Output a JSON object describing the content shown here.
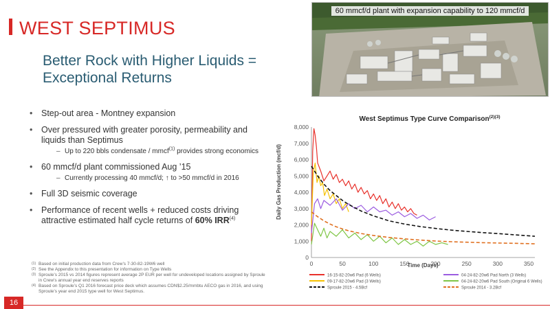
{
  "slide": {
    "title": "WEST SEPTIMUS",
    "subtitle": "Better Rock with Higher Liquids = Exceptional Returns",
    "page_number": "16",
    "accent_color": "#d72826"
  },
  "bullets": [
    {
      "text": "Step-out area - Montney expansion"
    },
    {
      "text": "Over pressured with greater porosity, permeability and liquids than Septimus",
      "sub": {
        "before": "Up to 220 bbls condensate / mmcf",
        "sup": "(1)",
        "after": " provides strong economics"
      }
    },
    {
      "text": "60 mmcf/d plant commissioned Aug ’15",
      "sub": {
        "before": "Currently processing 40 mmcf/d; ↑ to >50 mmcf/d in 2016",
        "sup": "",
        "after": ""
      }
    },
    {
      "text": "Full 3D seismic coverage"
    },
    {
      "text": "Performance of recent wells + reduced costs driving attractive estimated half cycle returns of ",
      "emphasis": "60% IRR",
      "sup": "(4)"
    }
  ],
  "footnotes": [
    {
      "mark": "(1)",
      "text": "Based on initial production data from Crew’s 7-30-82-19W6 well"
    },
    {
      "mark": "(2)",
      "text": "See the Appendix to this presentation for information on Type Wells"
    },
    {
      "mark": "(3)",
      "text": "Sproule’s 2015 vs 2014 figures represent average 2P EUR per well for undeveloped locations assigned by Sproule in Crew’s annual year end reserves reports"
    },
    {
      "mark": "(4)",
      "text": "Based on Sproule’s Q1 2016 forecast price deck which assumes CDN$2.25/mmbtu AECO gas in 2016, and using Sproule’s year end 2015 type well for West Septimus."
    }
  ],
  "photo": {
    "caption": "60 mmcf/d plant with expansion capability to 120 mmcf/d"
  },
  "chart_data": {
    "type": "line",
    "title": "West Septimus Type Curve Comparison",
    "title_sup": "(2)(3)",
    "xlabel": "Time (Days)",
    "ylabel": "Daily Gas Production (mcf/d)",
    "xlim": [
      0,
      360
    ],
    "ylim": [
      0,
      8000
    ],
    "xticks": [
      0,
      50,
      100,
      150,
      200,
      250,
      300,
      350
    ],
    "yticks": [
      0,
      1000,
      2000,
      3000,
      4000,
      5000,
      6000,
      7000,
      8000
    ],
    "ytick_labels": [
      "0",
      "1,000",
      "2,000",
      "3,000",
      "4,000",
      "5,000",
      "6,000",
      "7,000",
      "8,000"
    ],
    "grid": false,
    "legend_position": "bottom",
    "series": [
      {
        "name": "16-15-82-20w6 Pad (6 Wells)",
        "color": "#e8302a",
        "style": "solid",
        "x": [
          0,
          2,
          4,
          6,
          8,
          10,
          15,
          20,
          25,
          30,
          35,
          40,
          45,
          50,
          55,
          60,
          65,
          70,
          75,
          80,
          85,
          90,
          95,
          100,
          105,
          110,
          115,
          120,
          125,
          130,
          135,
          140,
          145,
          150,
          155,
          160,
          165,
          170
        ],
        "y": [
          1000,
          6500,
          7900,
          7500,
          6800,
          5800,
          5300,
          4700,
          5000,
          5300,
          4800,
          5100,
          4600,
          4800,
          4400,
          4700,
          4200,
          4500,
          4000,
          4300,
          3900,
          4100,
          3600,
          3900,
          3500,
          3800,
          3300,
          3600,
          3100,
          3400,
          3000,
          3300,
          2900,
          3100,
          2800,
          3000,
          2700,
          2600
        ]
      },
      {
        "name": "09-17-82-20w6 Pad (3 Wells)",
        "color": "#f5c000",
        "style": "solid",
        "x": [
          0,
          3,
          6,
          9,
          12,
          15,
          18,
          21,
          25,
          30,
          35,
          40,
          45,
          50,
          55,
          60
        ],
        "y": [
          2000,
          5200,
          5800,
          4600,
          5000,
          4400,
          4600,
          3800,
          4200,
          3600,
          3900,
          3300,
          3600,
          3000,
          3300,
          2800
        ]
      },
      {
        "name": "04-24-82-20w6 Pad North (3 Wells)",
        "color": "#9b5ce0",
        "style": "solid",
        "x": [
          0,
          5,
          10,
          15,
          20,
          30,
          40,
          50,
          60,
          70,
          80,
          90,
          100,
          110,
          120,
          130,
          140,
          150,
          160,
          170,
          180,
          190,
          200
        ],
        "y": [
          1500,
          3300,
          3600,
          3000,
          3500,
          3200,
          3600,
          2900,
          3300,
          3000,
          3200,
          2800,
          3100,
          2800,
          2900,
          2600,
          2800,
          2500,
          2700,
          2400,
          2600,
          2300,
          2500
        ]
      },
      {
        "name": "04-24-82-20w6 Pad South (Original 6 Wells)",
        "color": "#7fc646",
        "style": "solid",
        "x": [
          0,
          5,
          10,
          15,
          20,
          25,
          30,
          40,
          50,
          60,
          70,
          80,
          90,
          100,
          110,
          120,
          130,
          140,
          150,
          160,
          170,
          180,
          190,
          200,
          210,
          220
        ],
        "y": [
          800,
          2100,
          1700,
          1300,
          1800,
          1200,
          1600,
          1300,
          1700,
          1200,
          1500,
          1100,
          1400,
          1000,
          1300,
          900,
          1200,
          800,
          1100,
          800,
          1000,
          700,
          1000,
          800,
          900,
          800
        ]
      },
      {
        "name": "Sproule 2015 - 4.5Bcf",
        "color": "#111111",
        "style": "dashed",
        "x": [
          0,
          10,
          20,
          30,
          40,
          50,
          60,
          80,
          100,
          125,
          150,
          175,
          200,
          225,
          250,
          275,
          300,
          325,
          350,
          360
        ],
        "y": [
          5600,
          5000,
          4500,
          4100,
          3800,
          3500,
          3250,
          2850,
          2550,
          2250,
          2050,
          1900,
          1780,
          1680,
          1600,
          1530,
          1470,
          1400,
          1330,
          1300
        ]
      },
      {
        "name": "Sproule 2014 - 3.2Bcf",
        "color": "#e07020",
        "style": "dashed",
        "x": [
          0,
          10,
          20,
          30,
          40,
          50,
          60,
          80,
          100,
          125,
          150,
          175,
          200,
          225,
          250,
          275,
          300,
          325,
          350,
          360
        ],
        "y": [
          2800,
          2500,
          2250,
          2050,
          1880,
          1750,
          1640,
          1470,
          1350,
          1230,
          1140,
          1070,
          1010,
          970,
          940,
          910,
          890,
          870,
          850,
          840
        ]
      }
    ]
  }
}
